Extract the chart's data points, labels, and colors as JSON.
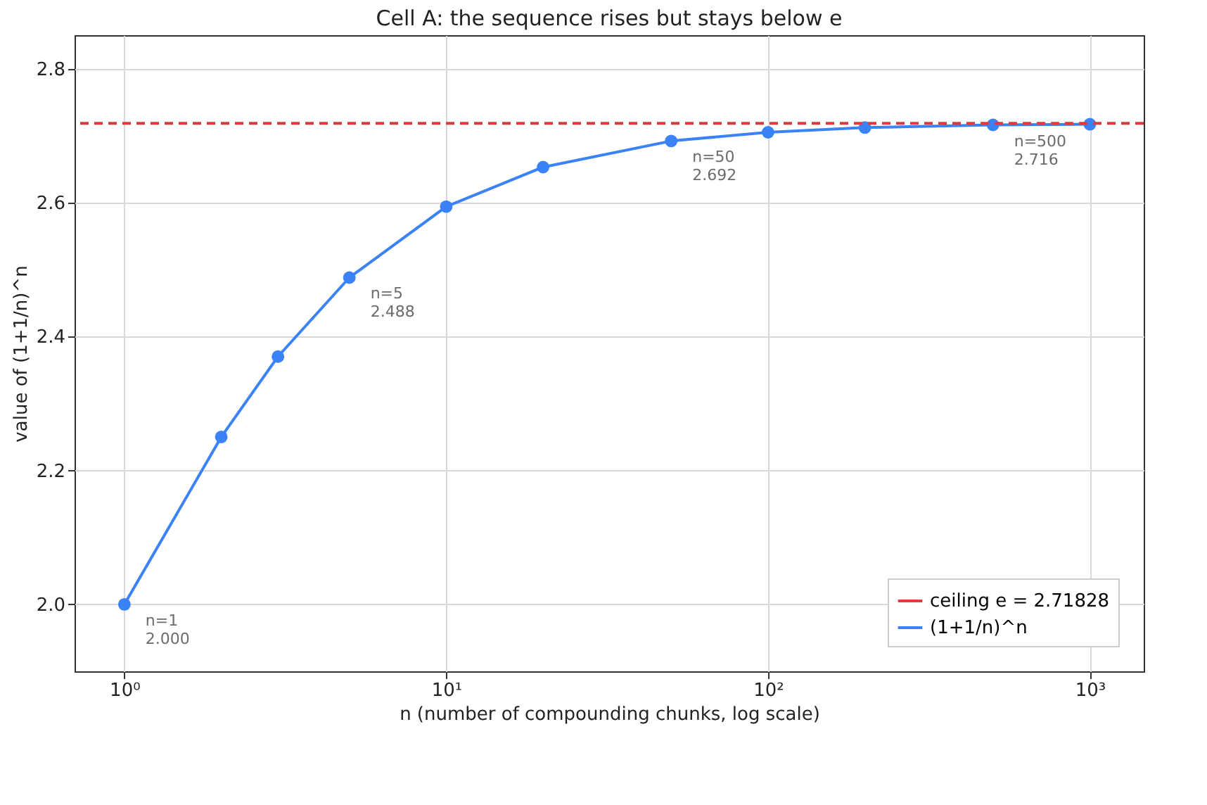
{
  "chart_data": {
    "type": "line",
    "title": "Cell A: the sequence rises but stays below e",
    "xlabel": "n  (number of compounding chunks, log scale)",
    "ylabel": "value of (1+1/n)^n",
    "x": [
      1,
      2,
      3,
      5,
      10,
      20,
      50,
      100,
      200,
      500,
      1000
    ],
    "series": [
      {
        "name": "(1+1/n)^n",
        "color": "#3b82f6",
        "values": [
          2.0,
          2.25,
          2.37,
          2.488,
          2.594,
          2.653,
          2.692,
          2.705,
          2.712,
          2.716,
          2.717
        ]
      }
    ],
    "log": "x",
    "xlim": [
      0.7,
      1470
    ],
    "ylim": [
      1.9,
      2.85
    ],
    "xticks": [
      {
        "value": 1,
        "label": "10⁰"
      },
      {
        "value": 10,
        "label": "10¹"
      },
      {
        "value": 100,
        "label": "10²"
      },
      {
        "value": 1000,
        "label": "10³"
      }
    ],
    "yticks": [
      {
        "value": 2,
        "label": "2.0"
      },
      2.2,
      2.4,
      2.6,
      2.8
    ],
    "ref_lines": [
      {
        "axis": "y",
        "value": 2.71828,
        "label": "ceiling e = 2.71828",
        "color": "#e03b3b",
        "line_style": "dashed"
      }
    ],
    "annotations": [
      {
        "text": "n=1\n2.000",
        "x": 1,
        "y": 2.0
      },
      {
        "text": "n=5\n2.488",
        "x": 5,
        "y": 2.488
      },
      {
        "text": "n=50\n2.692",
        "x": 50,
        "y": 2.692
      },
      {
        "text": "n=500\n2.716",
        "x": 500,
        "y": 2.716
      }
    ],
    "grid": true,
    "legend": "bottom right",
    "marker": "circle",
    "line_style": "solid"
  }
}
